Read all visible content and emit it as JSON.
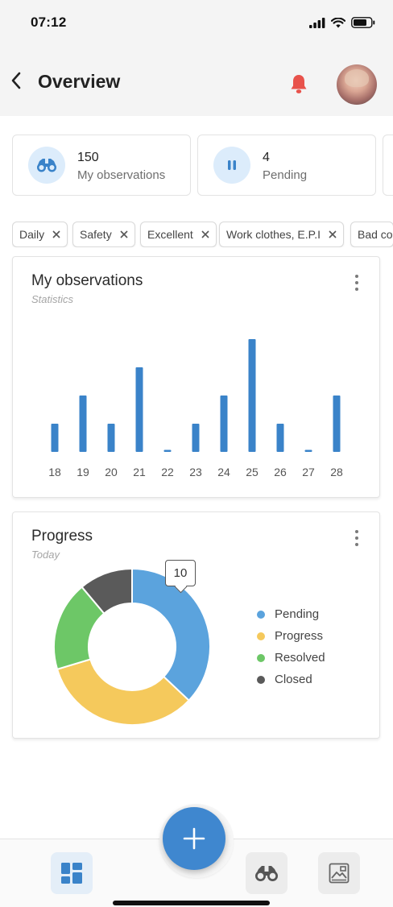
{
  "status_bar": {
    "time": "07:12"
  },
  "header": {
    "title": "Overview",
    "back_icon": "chevron-left-icon",
    "bell_icon": "bell-icon"
  },
  "summary": [
    {
      "count": "150",
      "label": "My observations",
      "icon": "binoculars-icon"
    },
    {
      "count": "4",
      "label": "Pending",
      "icon": "pause-icon"
    }
  ],
  "filters": [
    "Daily",
    "Safety",
    "Excellent",
    "Work clothes, E.P.I",
    "Bad co"
  ],
  "observations_card": {
    "title": "My observations",
    "subtitle": "Statistics",
    "chart_data": {
      "type": "bar",
      "categories": [
        "18",
        "19",
        "20",
        "21",
        "22",
        "23",
        "24",
        "25",
        "26",
        "27",
        "28"
      ],
      "values": [
        3.5,
        7,
        3.5,
        10.5,
        0.2,
        3.5,
        7,
        14,
        3.5,
        0.2,
        7
      ],
      "ylim": [
        0,
        15
      ],
      "grid": false,
      "color": "#3a83c9"
    }
  },
  "progress_card": {
    "title": "Progress",
    "subtitle": "Today",
    "tooltip": "10",
    "chart_data": {
      "type": "pie",
      "donut": true,
      "labels": [
        "Pending",
        "Progress",
        "Resolved",
        "Closed"
      ],
      "values": [
        10,
        9,
        5,
        3
      ],
      "colors": [
        "#5ba3dd",
        "#f5c95c",
        "#6dc767",
        "#5a5a5a"
      ]
    }
  },
  "bottom_nav": {
    "items": [
      {
        "icon": "dashboard-icon",
        "active": true
      },
      {
        "icon": "binoculars-icon",
        "active": false
      },
      {
        "icon": "gallery-icon",
        "active": false
      }
    ],
    "fab_icon": "plus-icon"
  }
}
